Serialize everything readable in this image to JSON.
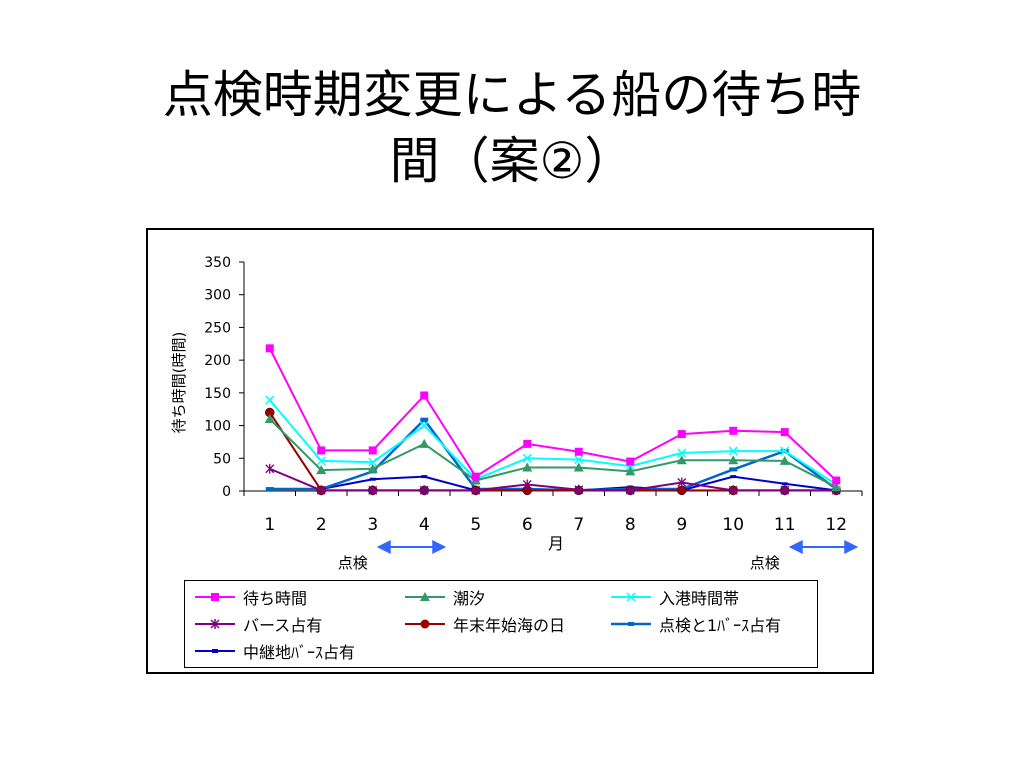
{
  "slide": {
    "title_line1": "点検時期変更による船の待ち時",
    "title_line2": "間（案②）"
  },
  "chart_data": {
    "type": "line",
    "categories": [
      "1",
      "2",
      "3",
      "4",
      "5",
      "6",
      "7",
      "8",
      "9",
      "10",
      "11",
      "12"
    ],
    "xlabel": "月",
    "ylabel": "待ち時間(時間)",
    "ylim": [
      0,
      350
    ],
    "yticks": [
      0,
      50,
      100,
      150,
      200,
      250,
      300,
      350
    ],
    "grid": false,
    "legend_position": "bottom",
    "series": [
      {
        "name": "待ち時間",
        "color": "#ff00ff",
        "marker": "square",
        "values": [
          218,
          62,
          62,
          146,
          22,
          72,
          60,
          45,
          87,
          92,
          90,
          16
        ]
      },
      {
        "name": "潮汐",
        "color": "#339966",
        "marker": "triangle",
        "values": [
          110,
          32,
          34,
          72,
          16,
          36,
          36,
          30,
          47,
          47,
          46,
          6
        ]
      },
      {
        "name": "入港時間帯",
        "color": "#00ffff",
        "marker": "x",
        "values": [
          139,
          46,
          44,
          100,
          18,
          50,
          48,
          38,
          58,
          61,
          61,
          10
        ]
      },
      {
        "name": "バース占有",
        "color": "#800080",
        "marker": "star",
        "values": [
          34,
          1,
          1,
          1,
          1,
          10,
          2,
          1,
          13,
          1,
          1,
          1
        ]
      },
      {
        "name": "年末年始海の日",
        "color": "#990000",
        "marker": "circle",
        "values": [
          120,
          1,
          1,
          1,
          1,
          1,
          1,
          1,
          1,
          1,
          1,
          1
        ]
      },
      {
        "name": "点検と1バース占有",
        "color": "#0066cc",
        "marker": "dash",
        "width": 2.5,
        "values": [
          3,
          3,
          30,
          109,
          3,
          3,
          1,
          3,
          3,
          33,
          61,
          3
        ]
      },
      {
        "name": "中継地バース占有",
        "color": "#0000cc",
        "marker": "smalldash",
        "values": [
          3,
          3,
          18,
          22,
          1,
          1,
          1,
          6,
          1,
          22,
          11,
          1
        ]
      }
    ],
    "annotations": [
      {
        "text": "点検",
        "arrow_months": [
          3,
          4
        ]
      },
      {
        "text": "点検",
        "arrow_months": [
          11,
          12
        ]
      }
    ]
  },
  "legend": {
    "items": [
      {
        "label": "待ち時間",
        "icon": "square-line-icon"
      },
      {
        "label": "潮汐",
        "icon": "triangle-line-icon"
      },
      {
        "label": "入港時間帯",
        "icon": "x-line-icon"
      },
      {
        "label": "バース占有",
        "icon": "star-line-icon"
      },
      {
        "label": "年末年始海の日",
        "icon": "circle-line-icon"
      },
      {
        "label": "点検と1ﾊﾞｰｽ占有",
        "icon": "dash-line-icon"
      },
      {
        "label": "中継地ﾊﾞｰｽ占有",
        "icon": "smalldash-line-icon"
      }
    ]
  },
  "arrow_color": "#3366ff"
}
